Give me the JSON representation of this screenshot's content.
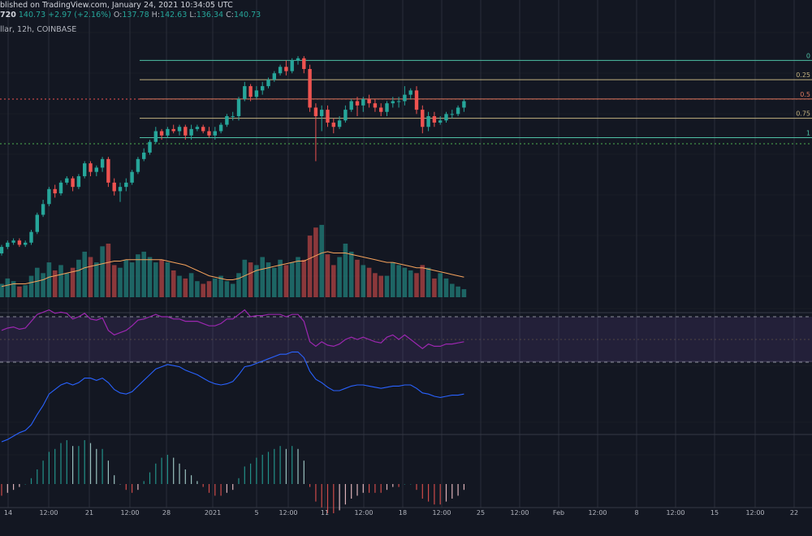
{
  "header": {
    "published": "blished on TradingView.com, January 24, 2021 10:34:05 UTC",
    "symbol_tail": "720",
    "last": "140.73",
    "change": "+2.97 (+2.16%)",
    "o_label": "O:",
    "o": "137.78",
    "h_label": "H:",
    "h": "142.63",
    "l_label": "L:",
    "l": "136.34",
    "c_label": "C:",
    "c": "140.73",
    "subtitle": "llar, 12h, COINBASE"
  },
  "colors": {
    "background": "#131722",
    "grid": "#2a2e39",
    "bull": "#26a69a",
    "bear": "#ef5350",
    "rsi_line": "#9c27b0",
    "rsi_band": "#7e57c2",
    "macd_line": "#2962ff",
    "volume_ma": "#f7a35c",
    "fib_0": "#4fc1a6",
    "fib_025": "#c2b280",
    "fib_05": "#e07a5f",
    "fib_075": "#c2b280",
    "fib_1": "#4fc1a6"
  },
  "fib_labels": [
    "0",
    "0.25",
    "0.5",
    "0.75",
    "1"
  ],
  "x_axis_labels": [
    "14",
    "12:00",
    "21",
    "12:00",
    "28",
    "2021",
    "5",
    "12:00",
    "11",
    "12:00",
    "18",
    "12:00",
    "25",
    "12:00",
    "Feb",
    "12:00",
    "8",
    "12:00",
    "15",
    "12:00",
    "22",
    "12:00"
  ],
  "chart_data": {
    "type": "candlestick",
    "open": [
      98,
      101,
      103,
      104,
      102,
      103,
      108,
      116,
      121,
      128,
      126,
      131,
      133,
      129,
      134,
      140,
      136,
      138,
      142,
      131,
      127,
      129,
      131,
      136,
      142,
      145,
      150,
      155,
      153,
      156,
      155,
      157,
      153,
      156,
      157,
      155,
      153,
      155,
      158,
      162,
      162,
      170,
      176,
      171,
      174,
      176,
      179,
      182,
      185,
      183,
      188,
      189,
      184,
      166,
      162,
      165,
      159,
      157,
      160,
      165,
      169,
      167,
      170,
      168,
      166,
      164,
      168,
      169,
      169,
      172,
      174,
      165,
      157,
      162,
      159,
      160,
      163,
      163,
      166
    ],
    "close": [
      101,
      103,
      104,
      102,
      103,
      108,
      116,
      121,
      128,
      126,
      131,
      133,
      129,
      134,
      140,
      136,
      138,
      142,
      131,
      127,
      129,
      131,
      136,
      142,
      145,
      150,
      155,
      153,
      156,
      155,
      157,
      153,
      156,
      157,
      155,
      153,
      155,
      158,
      162,
      162,
      170,
      176,
      171,
      174,
      176,
      179,
      182,
      185,
      183,
      188,
      189,
      184,
      166,
      162,
      165,
      159,
      157,
      160,
      165,
      169,
      167,
      170,
      168,
      166,
      164,
      168,
      169,
      169,
      172,
      174,
      165,
      157,
      162,
      159,
      160,
      163,
      163,
      166,
      169
    ],
    "high": [
      102,
      104,
      105,
      105,
      104,
      109,
      117,
      123,
      129,
      130,
      132,
      134,
      134,
      135,
      141,
      141,
      139,
      143,
      143,
      133,
      131,
      133,
      137,
      143,
      147,
      151,
      157,
      156,
      157,
      158,
      158,
      158,
      158,
      158,
      158,
      157,
      157,
      159,
      163,
      164,
      171,
      178,
      177,
      176,
      178,
      180,
      183,
      186,
      188,
      189,
      190,
      190,
      186,
      168,
      167,
      167,
      161,
      162,
      167,
      170,
      171,
      171,
      172,
      170,
      168,
      169,
      171,
      171,
      176,
      175,
      176,
      167,
      164,
      164,
      162,
      164,
      165,
      167,
      170
    ],
    "low": [
      97,
      100,
      102,
      101,
      101,
      102,
      107,
      115,
      120,
      124,
      125,
      130,
      127,
      128,
      133,
      134,
      134,
      136,
      129,
      125,
      122,
      127,
      130,
      135,
      141,
      144,
      149,
      151,
      152,
      154,
      153,
      151,
      151,
      155,
      154,
      152,
      151,
      154,
      157,
      160,
      160,
      169,
      169,
      170,
      172,
      175,
      178,
      181,
      181,
      182,
      186,
      182,
      164,
      141,
      155,
      157,
      154,
      156,
      159,
      164,
      162,
      164,
      166,
      164,
      162,
      162,
      166,
      166,
      167,
      170,
      163,
      154,
      155,
      157,
      158,
      159,
      161,
      162,
      164
    ],
    "volume": [
      10,
      14,
      12,
      8,
      9,
      16,
      22,
      18,
      26,
      20,
      24,
      18,
      22,
      28,
      34,
      30,
      26,
      38,
      40,
      24,
      22,
      28,
      26,
      32,
      34,
      30,
      26,
      28,
      26,
      20,
      16,
      14,
      18,
      12,
      10,
      12,
      14,
      16,
      12,
      10,
      18,
      28,
      26,
      24,
      30,
      26,
      22,
      28,
      24,
      26,
      30,
      28,
      46,
      52,
      54,
      32,
      24,
      30,
      40,
      34,
      28,
      24,
      22,
      18,
      16,
      16,
      26,
      24,
      22,
      20,
      18,
      24,
      22,
      14,
      18,
      14,
      10,
      8,
      6
    ],
    "volume_ma": [
      8,
      9,
      10,
      10,
      10,
      11,
      12,
      13,
      15,
      16,
      17,
      18,
      19,
      20,
      22,
      23,
      24,
      25,
      26,
      27,
      27,
      28,
      28,
      28,
      28,
      28,
      28,
      28,
      27,
      26,
      25,
      24,
      22,
      20,
      18,
      16,
      15,
      14,
      13,
      13,
      14,
      16,
      18,
      20,
      21,
      22,
      23,
      24,
      25,
      26,
      27,
      27,
      29,
      31,
      33,
      34,
      33,
      33,
      33,
      32,
      31,
      30,
      29,
      28,
      27,
      26,
      26,
      25,
      24,
      23,
      22,
      22,
      21,
      20,
      19,
      18,
      17,
      16,
      15
    ],
    "rsi": [
      58,
      60,
      61,
      59,
      60,
      66,
      72,
      74,
      76,
      73,
      74,
      73,
      68,
      70,
      73,
      68,
      67,
      69,
      58,
      54,
      56,
      58,
      62,
      67,
      68,
      70,
      72,
      70,
      70,
      68,
      68,
      66,
      66,
      66,
      64,
      62,
      62,
      64,
      68,
      68,
      72,
      76,
      70,
      71,
      71,
      72,
      72,
      72,
      70,
      72,
      72,
      66,
      48,
      44,
      48,
      45,
      44,
      46,
      50,
      52,
      50,
      52,
      50,
      48,
      47,
      52,
      54,
      50,
      54,
      50,
      46,
      42,
      46,
      44,
      44,
      46,
      46,
      47,
      48
    ],
    "macd": [
      -4,
      -3.8,
      -3.5,
      -3.2,
      -3,
      -2.5,
      -1.6,
      -0.8,
      0.2,
      0.6,
      1,
      1.2,
      1,
      1.2,
      1.6,
      1.6,
      1.4,
      1.6,
      1.2,
      0.6,
      0.3,
      0.2,
      0.4,
      0.9,
      1.4,
      1.9,
      2.4,
      2.6,
      2.8,
      2.7,
      2.6,
      2.3,
      2.1,
      1.9,
      1.6,
      1.3,
      1.1,
      1.0,
      1.1,
      1.3,
      1.9,
      2.6,
      2.7,
      2.9,
      3.1,
      3.3,
      3.5,
      3.7,
      3.7,
      3.9,
      3.9,
      3.4,
      2.2,
      1.5,
      1.2,
      0.8,
      0.5,
      0.5,
      0.7,
      0.9,
      1.0,
      1.0,
      0.9,
      0.8,
      0.7,
      0.8,
      0.9,
      0.9,
      1.0,
      1.0,
      0.7,
      0.3,
      0.2,
      0.0,
      -0.1,
      0.0,
      0.1,
      0.1,
      0.2
    ],
    "hist": [
      -0.4,
      -0.3,
      -0.2,
      -0.1,
      0.0,
      0.2,
      0.5,
      0.8,
      1.1,
      1.2,
      1.4,
      1.5,
      1.3,
      1.3,
      1.5,
      1.4,
      1.2,
      1.2,
      0.8,
      0.3,
      0.0,
      -0.2,
      -0.3,
      -0.2,
      0.1,
      0.4,
      0.7,
      0.9,
      1.0,
      0.9,
      0.7,
      0.5,
      0.3,
      0.1,
      -0.1,
      -0.3,
      -0.4,
      -0.4,
      -0.3,
      -0.2,
      0.2,
      0.6,
      0.7,
      0.9,
      1.0,
      1.1,
      1.2,
      1.3,
      1.2,
      1.3,
      1.2,
      0.8,
      -0.1,
      -0.6,
      -0.8,
      -1.0,
      -1.0,
      -0.9,
      -0.7,
      -0.5,
      -0.4,
      -0.3,
      -0.3,
      -0.3,
      -0.3,
      -0.2,
      -0.1,
      -0.1,
      0.0,
      0.0,
      -0.2,
      -0.5,
      -0.6,
      -0.7,
      -0.7,
      -0.6,
      -0.5,
      -0.4,
      -0.2
    ],
    "fib_prices": [
      188,
      179,
      170,
      161,
      152
    ]
  }
}
